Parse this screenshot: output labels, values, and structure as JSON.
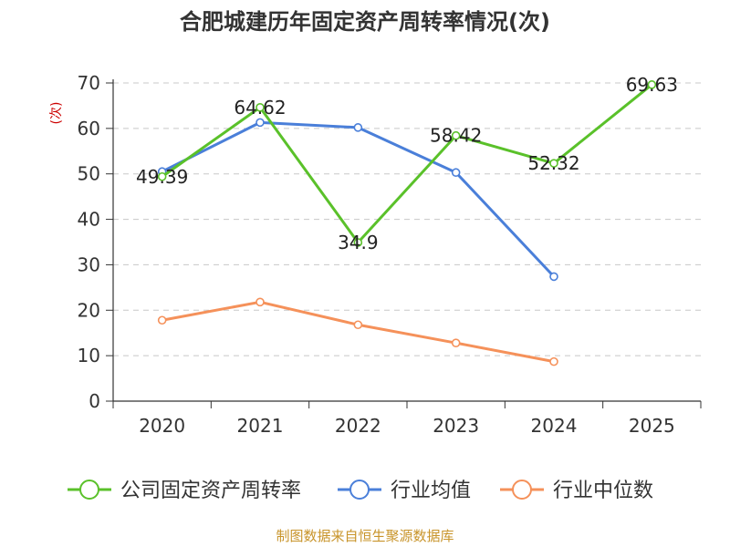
{
  "chart_data": {
    "type": "line",
    "title": "合肥城建历年固定资产周转率情况(次)",
    "ylabel": "(次)",
    "xlabel": "",
    "ylim": [
      0,
      70
    ],
    "yticks": [
      0,
      10,
      20,
      30,
      40,
      50,
      60,
      70
    ],
    "grid": true,
    "legend_position": "bottom",
    "categories": [
      "2020",
      "2021",
      "2022",
      "2023",
      "2024",
      "2025"
    ],
    "series": [
      {
        "name": "公司固定资产周转率",
        "color": "#5ac12a",
        "values": [
          49.39,
          64.62,
          34.9,
          58.42,
          52.32,
          69.63
        ],
        "labels": [
          "49.39",
          "64.62",
          "34.9",
          "58.42",
          "52.32",
          "69.63"
        ]
      },
      {
        "name": "行业均值",
        "color": "#4a7fd9",
        "values": [
          50.5,
          61.3,
          60.2,
          50.3,
          27.4,
          null
        ]
      },
      {
        "name": "行业中位数",
        "color": "#f5915a",
        "values": [
          17.8,
          21.8,
          16.8,
          12.8,
          8.7,
          null
        ]
      }
    ],
    "source": "制图数据来自恒生聚源数据库"
  }
}
